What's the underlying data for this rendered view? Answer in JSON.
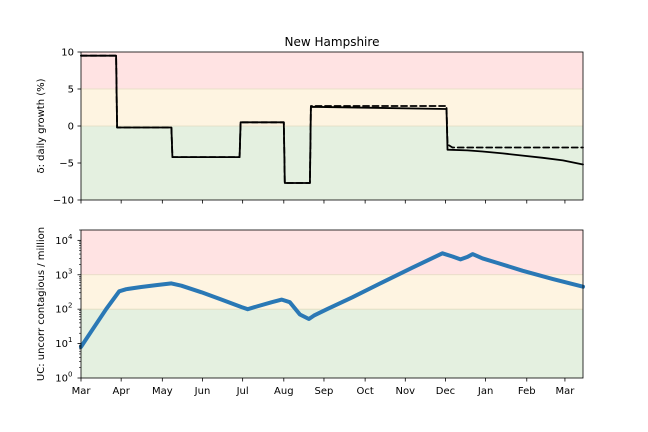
{
  "chart_data": [
    {
      "type": "line",
      "title": "New Hampshire",
      "ylabel": "δ: daily growth (%)",
      "ylim": [
        -10,
        10
      ],
      "yticks": [
        "10",
        "5",
        "0",
        "−5",
        "−10"
      ],
      "ytick_values": [
        10,
        5,
        0,
        -5,
        -10
      ],
      "grid": false,
      "bands": [
        {
          "from": 5,
          "to": 10,
          "color": "#ffe3e3"
        },
        {
          "from": 0,
          "to": 5,
          "color": "#fef4e1"
        },
        {
          "from": -10,
          "to": 0,
          "color": "#e4f0e0"
        }
      ],
      "series": [
        {
          "style": "solid",
          "color": "#000000",
          "x": [
            0,
            35,
            36,
            90,
            91,
            158,
            159,
            202,
            203,
            228,
            229,
            364,
            365,
            385,
            400,
            420,
            440,
            460,
            480,
            500
          ],
          "values": [
            9.5,
            9.5,
            -0.2,
            -0.2,
            -4.2,
            -4.2,
            0.5,
            0.5,
            -7.7,
            -7.7,
            2.6,
            2.3,
            -3.2,
            -3.3,
            -3.45,
            -3.7,
            -4.0,
            -4.3,
            -4.65,
            -5.2
          ]
        },
        {
          "style": "dashed",
          "color": "#000000",
          "x": [
            0,
            35,
            36,
            90,
            91,
            158,
            159,
            202,
            203,
            228,
            229,
            364,
            365,
            370,
            500
          ],
          "values": [
            9.5,
            9.5,
            -0.2,
            -0.2,
            -4.2,
            -4.2,
            0.5,
            0.5,
            -7.7,
            -7.7,
            2.7,
            2.7,
            -2.5,
            -2.9,
            -2.9
          ]
        }
      ]
    },
    {
      "type": "line",
      "ylabel": "UC: uncorr contagious / million",
      "yscale": "log",
      "ylim": [
        1,
        20000
      ],
      "yticks": [
        "10",
        "10",
        "10",
        "10",
        "10"
      ],
      "ytick_exponents": [
        "4",
        "3",
        "2",
        "1",
        "0"
      ],
      "ytick_values": [
        10000,
        1000,
        100,
        10,
        1
      ],
      "grid": false,
      "bands": [
        {
          "from": 1000,
          "to": 20000,
          "color": "#ffe3e3"
        },
        {
          "from": 100,
          "to": 1000,
          "color": "#fef4e1"
        },
        {
          "from": 1,
          "to": 100,
          "color": "#e4f0e0"
        }
      ],
      "x_tick_labels": [
        "Mar",
        "Apr",
        "May",
        "Jun",
        "Jul",
        "Aug",
        "Sep",
        "Oct",
        "Nov",
        "Dec",
        "Jan",
        "Feb",
        "Mar"
      ],
      "x_tick_days": [
        0,
        40,
        81,
        121,
        161,
        202,
        242,
        283,
        323,
        363,
        403,
        444,
        482
      ],
      "series": [
        {
          "color": "#2a78b5",
          "x": [
            0,
            10,
            25,
            38,
            45,
            60,
            75,
            90,
            100,
            120,
            140,
            160,
            166,
            175,
            190,
            200,
            208,
            218,
            227,
            232,
            245,
            270,
            300,
            330,
            360,
            370,
            378,
            385,
            390,
            400,
            415,
            440,
            470,
            500
          ],
          "values": [
            8,
            22,
            100,
            330,
            380,
            440,
            500,
            560,
            480,
            310,
            190,
            115,
            100,
            120,
            160,
            190,
            160,
            70,
            52,
            65,
            100,
            220,
            600,
            1600,
            4200,
            3400,
            2800,
            3300,
            4000,
            3000,
            2200,
            1300,
            750,
            450
          ]
        }
      ]
    }
  ]
}
